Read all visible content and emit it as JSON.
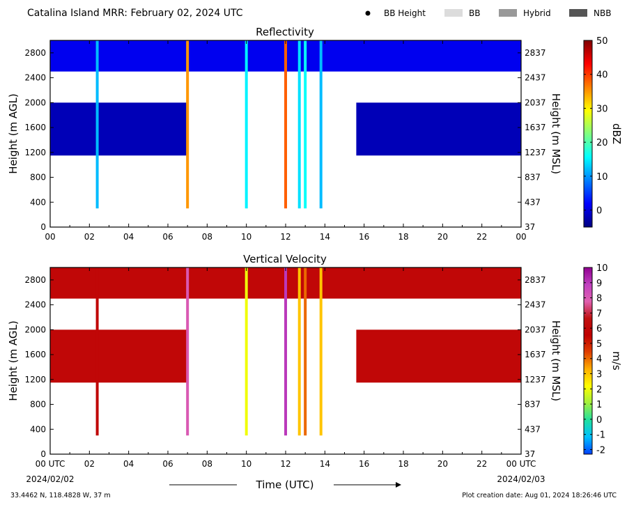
{
  "header": {
    "title": "Catalina Island MRR:  February 02, 2024 UTC",
    "legend": [
      {
        "label": "BB Height",
        "kind": "dot",
        "color": "#000000"
      },
      {
        "label": "BB",
        "kind": "box",
        "color": "#dcdcdc"
      },
      {
        "label": "Hybrid",
        "kind": "box",
        "color": "#999999"
      },
      {
        "label": "NBB",
        "kind": "box",
        "color": "#555555"
      }
    ]
  },
  "footer": {
    "location": "33.4462 N, 118.4828 W, 37 m",
    "created": "Plot creation date: Aug 01, 2024 18:26:46 UTC",
    "start_date": "2024/02/02",
    "end_date": "2024/02/03"
  },
  "colors": {
    "background": "#ffffff",
    "axis": "#000000"
  },
  "chart_data": [
    {
      "type": "heatmap",
      "title": "Reflectivity",
      "xlabel": "",
      "ylabel": "Height (m AGL)",
      "ylabel_right": "Height (m MSL)",
      "x_ticks": [
        "00",
        "02",
        "04",
        "06",
        "08",
        "10",
        "12",
        "14",
        "16",
        "18",
        "20",
        "22",
        "00"
      ],
      "xlim_hours": [
        0,
        24
      ],
      "y_ticks": [
        0,
        400,
        800,
        1200,
        1600,
        2000,
        2400,
        2800
      ],
      "y_ticks_right": [
        "37",
        "437",
        "837",
        "1237",
        "1637",
        "2037",
        "2437",
        "2837"
      ],
      "ylim": [
        0,
        3000
      ],
      "colorbar": {
        "label": "dBZ",
        "range": [
          -5,
          50
        ],
        "ticks": [
          0,
          10,
          20,
          30,
          40,
          50
        ],
        "stops": [
          "#000080",
          "#0000ff",
          "#0080ff",
          "#00ffff",
          "#80ff80",
          "#ffff00",
          "#ff8000",
          "#ff0000",
          "#800000"
        ]
      },
      "layers": [
        {
          "t0": 0.0,
          "t1": 24.0,
          "h0": 2500,
          "h1": 3000,
          "value": 1
        },
        {
          "t0": 0.0,
          "t1": 7.0,
          "h0": 1150,
          "h1": 2000,
          "value": -2
        },
        {
          "t0": 15.6,
          "t1": 24.0,
          "h0": 1150,
          "h1": 2000,
          "value": -2
        }
      ],
      "columns": [
        {
          "t": 2.4,
          "h0": 300,
          "h1": 3000,
          "value": 12
        },
        {
          "t": 7.0,
          "h0": 300,
          "h1": 3000,
          "value": 35
        },
        {
          "t": 10.0,
          "h0": 300,
          "h1": 3000,
          "value": 15
        },
        {
          "t": 12.0,
          "h0": 300,
          "h1": 3000,
          "value": 38
        },
        {
          "t": 12.7,
          "h0": 300,
          "h1": 3000,
          "value": 14
        },
        {
          "t": 13.0,
          "h0": 300,
          "h1": 3000,
          "value": 16
        },
        {
          "t": 13.8,
          "h0": 300,
          "h1": 3000,
          "value": 12
        }
      ]
    },
    {
      "type": "heatmap",
      "title": "Vertical Velocity",
      "xlabel": "Time (UTC)",
      "ylabel": "Height (m AGL)",
      "ylabel_right": "Height (m MSL)",
      "x_ticks": [
        "00 UTC",
        "02",
        "04",
        "06",
        "08",
        "10",
        "12",
        "14",
        "16",
        "18",
        "20",
        "22",
        "00 UTC"
      ],
      "xlim_hours": [
        0,
        24
      ],
      "y_ticks": [
        0,
        400,
        800,
        1200,
        1600,
        2000,
        2400,
        2800
      ],
      "y_ticks_right": [
        "37",
        "437",
        "837",
        "1237",
        "1637",
        "2037",
        "2437",
        "2837"
      ],
      "ylim": [
        0,
        3000
      ],
      "colorbar": {
        "label": "m/s",
        "range": [
          -2.3,
          10
        ],
        "ticks": [
          -2,
          -1,
          0,
          1,
          2,
          3,
          4,
          5,
          6,
          7,
          8,
          9,
          10
        ],
        "stops": [
          "#0040ff",
          "#00c0ff",
          "#20e0a0",
          "#a0f040",
          "#ffff00",
          "#ffb000",
          "#e04000",
          "#c00000",
          "#c01010",
          "#e060b0",
          "#c040c0",
          "#900090"
        ]
      },
      "layers": [
        {
          "t0": 0.0,
          "t1": 24.0,
          "h0": 2500,
          "h1": 3000,
          "value": 6
        },
        {
          "t0": 0.0,
          "t1": 7.0,
          "h0": 1150,
          "h1": 2000,
          "value": 6
        },
        {
          "t0": 15.6,
          "t1": 24.0,
          "h0": 1150,
          "h1": 2000,
          "value": 6
        }
      ],
      "columns": [
        {
          "t": 2.4,
          "h0": 300,
          "h1": 3000,
          "value": 6
        },
        {
          "t": 7.0,
          "h0": 300,
          "h1": 3000,
          "value": 8
        },
        {
          "t": 10.0,
          "h0": 300,
          "h1": 3000,
          "value": 2
        },
        {
          "t": 12.0,
          "h0": 300,
          "h1": 3000,
          "value": 9
        },
        {
          "t": 12.7,
          "h0": 300,
          "h1": 3000,
          "value": 3
        },
        {
          "t": 13.0,
          "h0": 300,
          "h1": 3000,
          "value": 4
        },
        {
          "t": 13.8,
          "h0": 300,
          "h1": 3000,
          "value": 3
        }
      ]
    }
  ]
}
